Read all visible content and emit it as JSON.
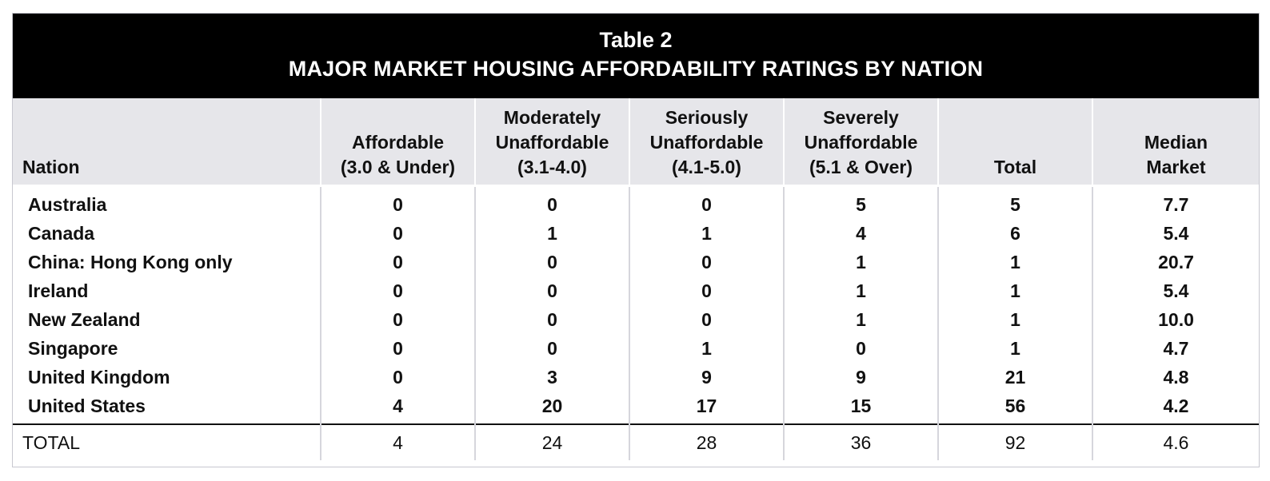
{
  "title": {
    "line1": "Table 2",
    "line2": "MAJOR MARKET HOUSING AFFORDABILITY RATINGS BY NATION"
  },
  "table": {
    "headers": [
      [
        "Nation"
      ],
      [
        "Affordable",
        "(3.0 & Under)"
      ],
      [
        "Moderately",
        "Unaffordable",
        "(3.1-4.0)"
      ],
      [
        "Seriously",
        "Unaffordable",
        "(4.1-5.0)"
      ],
      [
        "Severely",
        "Unaffordable",
        "(5.1 & Over)"
      ],
      [
        "Total"
      ],
      [
        "Median",
        "Market"
      ]
    ],
    "rows": [
      [
        "Australia",
        "0",
        "0",
        "0",
        "5",
        "5",
        "7.7"
      ],
      [
        "Canada",
        "0",
        "1",
        "1",
        "4",
        "6",
        "5.4"
      ],
      [
        "China: Hong Kong only",
        "0",
        "0",
        "0",
        "1",
        "1",
        "20.7"
      ],
      [
        "Ireland",
        "0",
        "0",
        "0",
        "1",
        "1",
        "5.4"
      ],
      [
        "New Zealand",
        "0",
        "0",
        "0",
        "1",
        "1",
        "10.0"
      ],
      [
        "Singapore",
        "0",
        "0",
        "1",
        "0",
        "1",
        "4.7"
      ],
      [
        "United Kingdom",
        "0",
        "3",
        "9",
        "9",
        "21",
        "4.8"
      ],
      [
        "United States",
        "4",
        "20",
        "17",
        "15",
        "56",
        "4.2"
      ]
    ],
    "total": [
      "TOTAL",
      "4",
      "24",
      "28",
      "36",
      "92",
      "4.6"
    ]
  }
}
